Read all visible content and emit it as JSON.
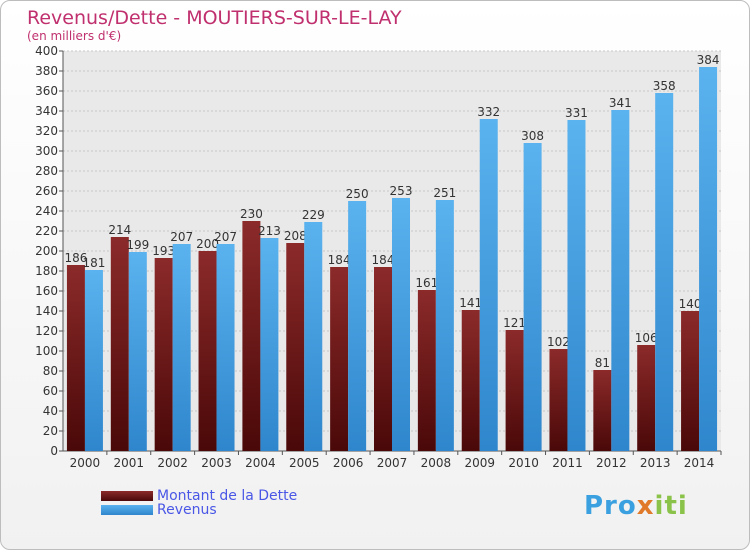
{
  "logo_text": "Proxiti",
  "chart_data": {
    "type": "bar",
    "title": "Revenus/Dette - MOUTIERS-SUR-LE-LAY",
    "subtitle": "(en milliers d'€)",
    "xlabel": "",
    "ylabel": "",
    "ylim": [
      0,
      400
    ],
    "ytick_step": 20,
    "grid": true,
    "legend_position": "bottom-left",
    "categories": [
      "2000",
      "2001",
      "2002",
      "2003",
      "2004",
      "2005",
      "2006",
      "2007",
      "2008",
      "2009",
      "2010",
      "2011",
      "2012",
      "2013",
      "2014"
    ],
    "series": [
      {
        "name": "Montant de la Dette",
        "color": "#7a1a1a",
        "values": [
          186,
          214,
          193,
          200,
          230,
          208,
          184,
          184,
          161,
          141,
          121,
          102,
          81,
          106,
          140
        ]
      },
      {
        "name": "Revenus",
        "color": "#4aa3e6",
        "values": [
          181,
          199,
          207,
          207,
          213,
          229,
          250,
          253,
          251,
          332,
          308,
          331,
          341,
          358,
          384
        ]
      }
    ]
  }
}
